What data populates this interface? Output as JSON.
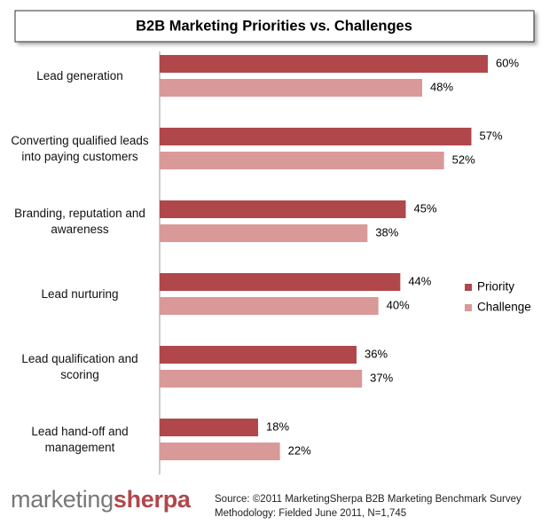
{
  "chart_data": {
    "type": "bar",
    "orientation": "horizontal",
    "title": "B2B Marketing Priorities vs. Challenges",
    "categories": [
      "Lead generation",
      "Converting qualified leads into paying customers",
      "Branding, reputation and awareness",
      "Lead nurturing",
      "Lead qualification and scoring",
      "Lead hand-off and management"
    ],
    "series": [
      {
        "name": "Priority",
        "color": "#b0474b",
        "values": [
          60,
          57,
          45,
          44,
          36,
          18
        ],
        "value_labels": [
          "60%",
          "57%",
          "45%",
          "44%",
          "36%",
          "18%"
        ]
      },
      {
        "name": "Challenge",
        "color": "#d99998",
        "values": [
          48,
          52,
          38,
          40,
          37,
          22
        ],
        "value_labels": [
          "48%",
          "52%",
          "38%",
          "40%",
          "37%",
          "22%"
        ]
      }
    ],
    "legend": "right"
  },
  "footer": {
    "logo": [
      "marketing",
      "sherpa"
    ],
    "source": "Source: ©2011 MarketingSherpa B2B Marketing Benchmark Survey",
    "methodology": "Methodology: Fielded June 2011, N=1,745"
  }
}
